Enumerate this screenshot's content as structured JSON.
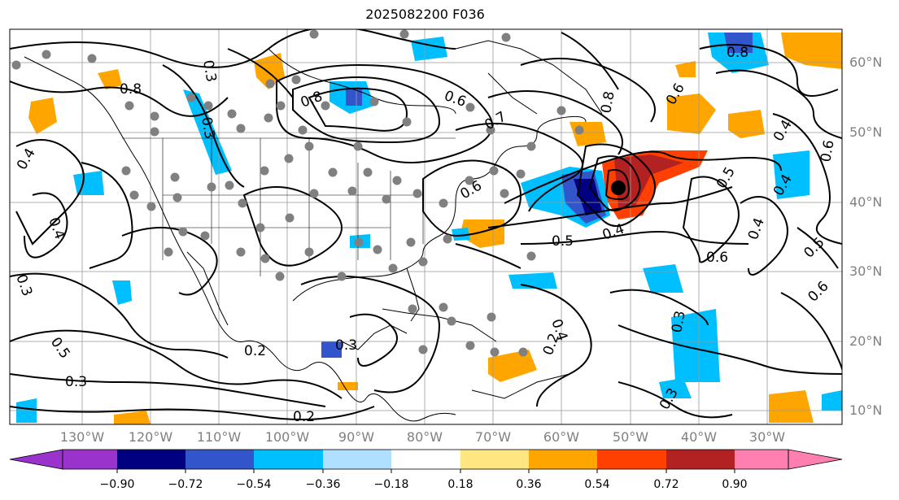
{
  "title": "2025082200 F036",
  "lon_labels": [
    "130°W",
    "120°W",
    "110°W",
    "100°W",
    "90°W",
    "80°W",
    "70°W",
    "60°W",
    "50°W",
    "40°W",
    "30°W"
  ],
  "lat_labels": [
    "60°N",
    "50°N",
    "40°N",
    "30°N",
    "20°N",
    "10°N"
  ],
  "colorbar": {
    "ticks": [
      "−0.90",
      "−0.72",
      "−0.54",
      "−0.36",
      "−0.18",
      "0.18",
      "0.36",
      "0.54",
      "0.72",
      "0.90"
    ],
    "colors": [
      "#9933cc",
      "#000080",
      "#3355cc",
      "#00bfff",
      "#b0e0ff",
      "#ffffff",
      "#ffe680",
      "#ffa500",
      "#ff4000",
      "#b22222",
      "#ff80b0"
    ]
  },
  "contour_labels": [
    "0.8",
    "0.7",
    "0.6",
    "0.5",
    "0.4",
    "0.3",
    "0.2"
  ],
  "colors": {
    "positive_fill": "#ffa500",
    "negative_fill": "#00bfff",
    "contour": "#000000",
    "station": "#808080"
  }
}
